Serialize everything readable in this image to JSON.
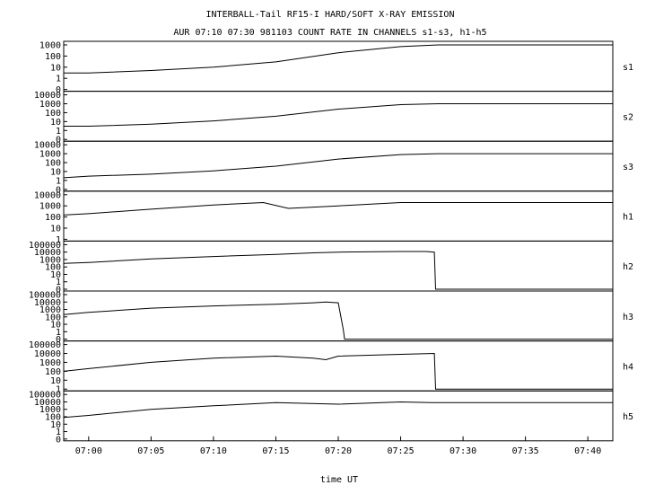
{
  "chart_data": {
    "type": "line",
    "title": "INTERBALL-Tail RF15-I HARD/SOFT X-RAY EMISSION",
    "subtitle": "AUR 07:10 07:30 981103  COUNT RATE IN CHANNELS s1-s3, h1-h5",
    "xlabel": "time UT",
    "x_range": [
      "06:58",
      "07:42"
    ],
    "x_ticks": [
      "07:00",
      "07:05",
      "07:10",
      "07:15",
      "07:20",
      "07:25",
      "07:30",
      "07:35",
      "07:40"
    ],
    "y_scale": "log",
    "panels": [
      {
        "name": "s1",
        "y_ticks": [
          "1000",
          "100",
          "10",
          "1",
          "0"
        ],
        "x": [
          "06:58",
          "07:00",
          "07:05",
          "07:10",
          "07:15",
          "07:20",
          "07:25",
          "07:28",
          "07:42"
        ],
        "values": [
          3,
          3,
          5,
          10,
          30,
          200,
          700,
          1000,
          1000
        ]
      },
      {
        "name": "s2",
        "y_ticks": [
          "10000",
          "1000",
          "100",
          "10",
          "1",
          "0"
        ],
        "x": [
          "06:58",
          "07:00",
          "07:05",
          "07:10",
          "07:15",
          "07:20",
          "07:25",
          "07:28",
          "07:42"
        ],
        "values": [
          3,
          3,
          5,
          12,
          40,
          250,
          800,
          1000,
          1000
        ]
      },
      {
        "name": "s3",
        "y_ticks": [
          "10000",
          "1000",
          "100",
          "10",
          "1",
          "0"
        ],
        "x": [
          "06:58",
          "07:00",
          "07:05",
          "07:10",
          "07:15",
          "07:20",
          "07:25",
          "07:28",
          "07:42"
        ],
        "values": [
          2,
          3,
          5,
          12,
          40,
          250,
          800,
          1000,
          1000
        ]
      },
      {
        "name": "h1",
        "y_ticks": [
          "10000",
          "1000",
          "100",
          "10",
          "1"
        ],
        "x": [
          "06:58",
          "07:00",
          "07:05",
          "07:10",
          "07:14",
          "07:16",
          "07:20",
          "07:25",
          "07:28",
          "07:42"
        ],
        "values": [
          150,
          200,
          500,
          1200,
          2000,
          600,
          1000,
          2000,
          2000,
          2000
        ]
      },
      {
        "name": "h2",
        "y_ticks": [
          "100000",
          "10000",
          "1000",
          "100",
          "10",
          "1",
          "0"
        ],
        "x": [
          "06:58",
          "07:00",
          "07:05",
          "07:10",
          "07:15",
          "07:18",
          "07:20",
          "07:25",
          "07:27",
          "07:27.7",
          "07:27.8",
          "07:42"
        ],
        "values": [
          300,
          400,
          1200,
          2500,
          5000,
          8000,
          10000,
          12000,
          12000,
          10000,
          0,
          0
        ]
      },
      {
        "name": "h3",
        "y_ticks": [
          "100000",
          "10000",
          "1000",
          "100",
          "10",
          "1",
          "0"
        ],
        "x": [
          "06:58",
          "07:00",
          "07:05",
          "07:10",
          "07:15",
          "07:18",
          "07:19",
          "07:20",
          "07:20.4",
          "07:20.5",
          "07:42"
        ],
        "values": [
          200,
          400,
          1500,
          3000,
          5000,
          8000,
          10000,
          8000,
          2,
          0,
          0
        ]
      },
      {
        "name": "h4",
        "y_ticks": [
          "100000",
          "10000",
          "1000",
          "100",
          "10",
          "1"
        ],
        "x": [
          "06:58",
          "07:00",
          "07:05",
          "07:10",
          "07:15",
          "07:18",
          "07:19",
          "07:20",
          "07:25",
          "07:27.7",
          "07:27.8",
          "07:42"
        ],
        "values": [
          100,
          200,
          1000,
          3000,
          5000,
          3000,
          2000,
          5000,
          8000,
          10000,
          1,
          1
        ]
      },
      {
        "name": "h5",
        "y_ticks": [
          "100000",
          "10000",
          "1000",
          "100",
          "10",
          "1",
          "0"
        ],
        "x": [
          "06:58",
          "07:00",
          "07:05",
          "07:10",
          "07:15",
          "07:20",
          "07:25",
          "07:27.5",
          "07:42"
        ],
        "values": [
          80,
          150,
          1000,
          3000,
          8000,
          5000,
          10000,
          8000,
          8000
        ]
      }
    ],
    "grid": false,
    "legend": "none"
  }
}
